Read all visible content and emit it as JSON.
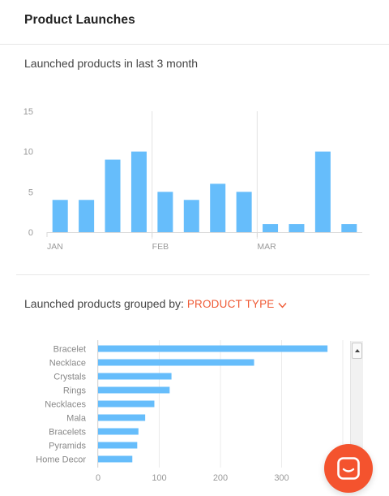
{
  "header": {
    "title": "Product Launches"
  },
  "launched_chart": {
    "subtitle": "Launched products in last 3 month"
  },
  "grouped_chart": {
    "subtitle_prefix": "Launched products grouped by:",
    "group_by_selected": "PRODUCT TYPE"
  },
  "colors": {
    "bar": "#66bdfb",
    "accent": "#ef5a35",
    "chat_button": "#f4532e"
  },
  "icons": {
    "dropdown": "chevron-down-icon",
    "chat": "chat-icon",
    "scroll_up": "arrow-up-icon"
  },
  "chart_data": [
    {
      "type": "bar",
      "title": "Launched products in last 3 month",
      "categories": [
        "",
        "",
        "",
        "",
        "",
        "",
        "",
        "",
        "",
        "",
        "",
        ""
      ],
      "month_labels": [
        {
          "label": "JAN",
          "at_index": 0
        },
        {
          "label": "FEB",
          "at_index": 4
        },
        {
          "label": "MAR",
          "at_index": 8
        }
      ],
      "values": [
        4,
        4,
        9,
        10,
        5,
        4,
        6,
        5,
        1,
        1,
        10,
        1
      ],
      "ylim": [
        0,
        15
      ],
      "yticks": [
        0,
        5,
        10,
        15
      ],
      "grid": "vertical-at-month-boundaries",
      "xlabel": "",
      "ylabel": ""
    },
    {
      "type": "bar",
      "orientation": "horizontal",
      "categories": [
        "Bracelet",
        "Necklace",
        "Crystals",
        "Rings",
        "Necklaces",
        "Mala",
        "Bracelets",
        "Pyramids",
        "Home Decor"
      ],
      "values": [
        375,
        255,
        120,
        117,
        92,
        77,
        66,
        64,
        56
      ],
      "xlim": [
        0,
        400
      ],
      "xticks": [
        0,
        100,
        200,
        300
      ],
      "grid": "vertical",
      "xlabel": "",
      "ylabel": ""
    }
  ]
}
